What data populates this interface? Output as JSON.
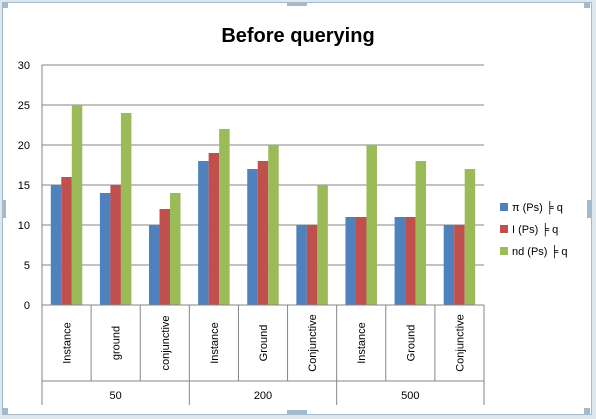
{
  "chart_data": {
    "type": "bar",
    "title": "Before querying",
    "xlabel": "",
    "ylabel": "",
    "ylim": [
      0,
      30
    ],
    "yticks": [
      "0",
      "5",
      "10",
      "15",
      "20",
      "25",
      "30"
    ],
    "grid": true,
    "legend_position": "right",
    "groups": [
      {
        "label": "50",
        "categories": [
          "Instance",
          "ground",
          "conjunctive"
        ]
      },
      {
        "label": "200",
        "categories": [
          "Instance",
          "Ground",
          "Conjunctive"
        ]
      },
      {
        "label": "500",
        "categories": [
          "Instance",
          "Ground",
          "Conjunctive"
        ]
      }
    ],
    "series": [
      {
        "name": "π (Ps) ╞ q",
        "color": "#4f81bd",
        "values": [
          15,
          14,
          10,
          18,
          17,
          10,
          11,
          11,
          10
        ]
      },
      {
        "name": "I (Ps) ╞ q",
        "color": "#c0504d",
        "values": [
          16,
          15,
          12,
          19,
          18,
          10,
          11,
          11,
          10
        ]
      },
      {
        "name": "nd (Ps) ╞ q",
        "color": "#9bbb59",
        "values": [
          25,
          24,
          14,
          22,
          20,
          15,
          20,
          18,
          17
        ]
      }
    ]
  }
}
